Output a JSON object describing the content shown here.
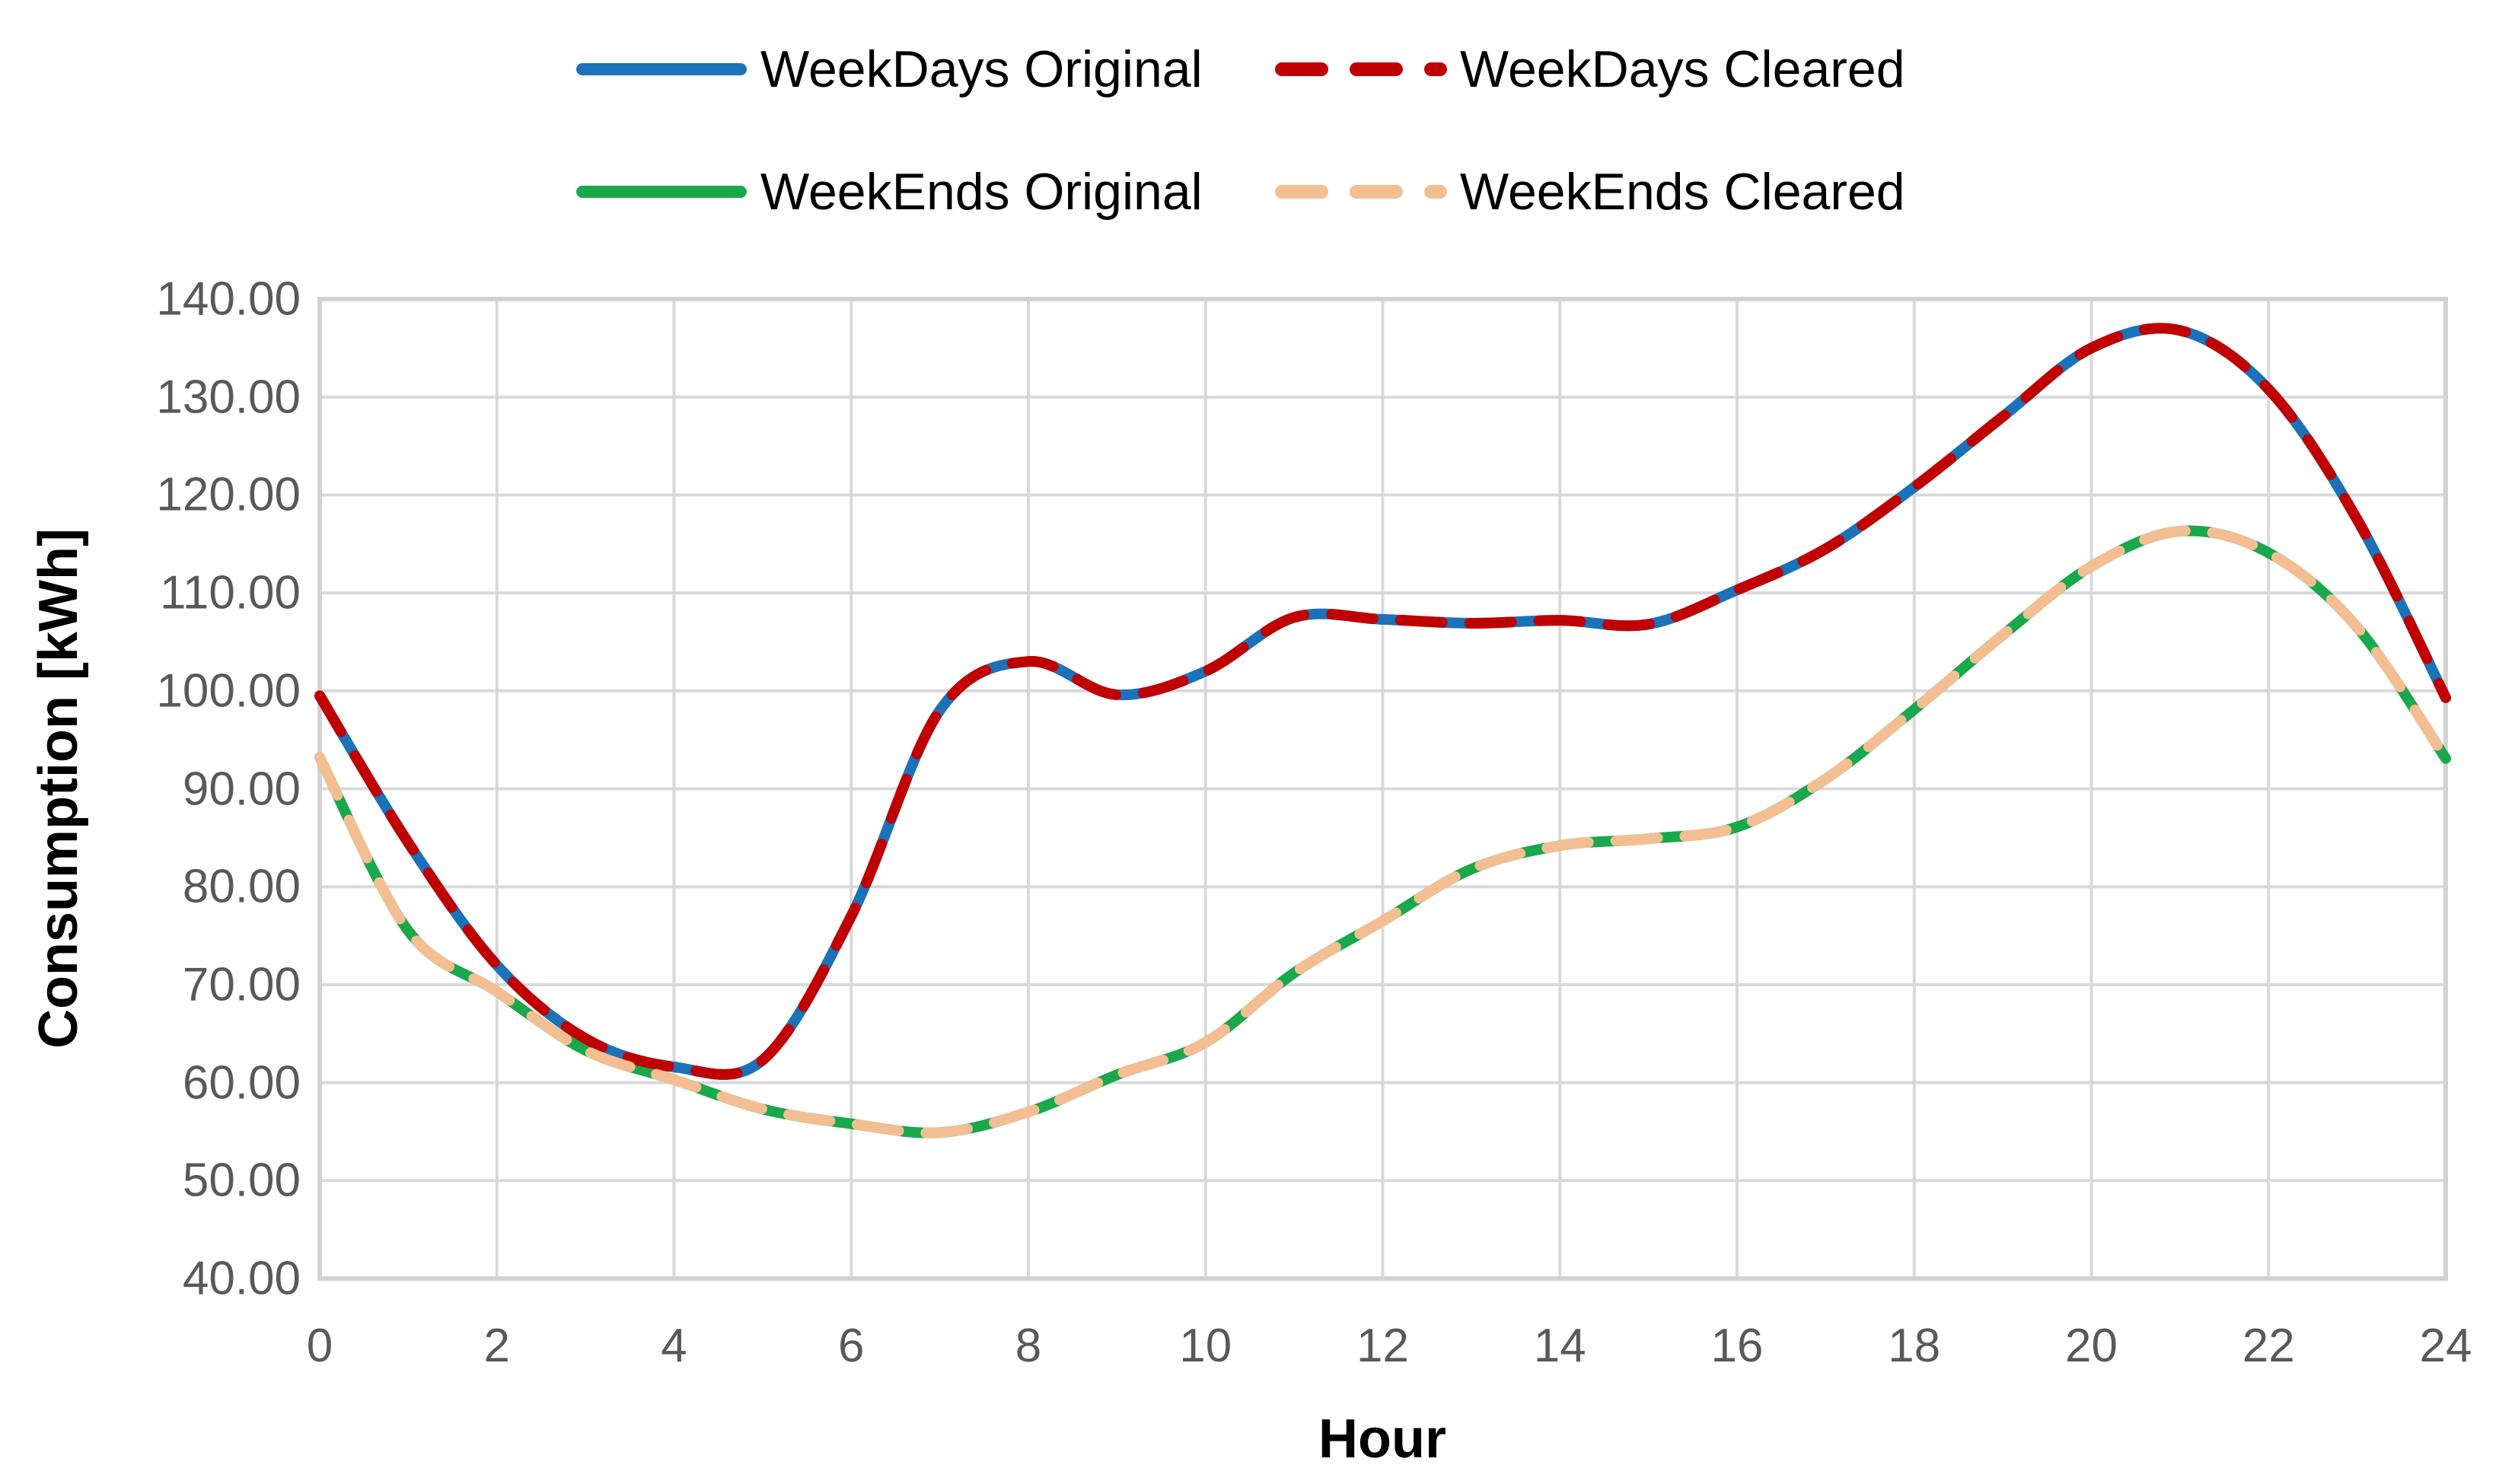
{
  "chart_data": {
    "type": "line",
    "title": "",
    "xlabel": "Hour",
    "ylabel": "Consumption [kWh]",
    "xlim": [
      0,
      24
    ],
    "ylim": [
      40,
      140
    ],
    "x_tick_step": 2,
    "y_tick_step": 10,
    "grid": true,
    "legend_position": "top",
    "x_ticks": [
      "0",
      "2",
      "4",
      "6",
      "8",
      "10",
      "12",
      "14",
      "16",
      "18",
      "20",
      "22",
      "24"
    ],
    "y_ticks": [
      "140.00",
      "130.00",
      "120.00",
      "110.00",
      "100.00",
      "90.00",
      "80.00",
      "70.00",
      "60.00",
      "50.00",
      "40.00"
    ],
    "x": [
      0,
      1,
      2,
      3,
      4,
      5,
      6,
      7,
      8,
      9,
      10,
      11,
      12,
      13,
      14,
      15,
      16,
      17,
      18,
      19,
      20,
      21,
      22,
      23,
      24
    ],
    "series": [
      {
        "name": "WeekDays Original",
        "color": "#1B72B9",
        "style": "solid",
        "values": [
          99.5,
          84.5,
          72.0,
          64.5,
          61.6,
          62.3,
          77.0,
          98.0,
          103.0,
          99.6,
          102.0,
          107.5,
          107.3,
          106.9,
          107.2,
          106.8,
          110.3,
          114.5,
          120.8,
          128.0,
          135.0,
          136.8,
          130.8,
          117.5,
          99.3
        ]
      },
      {
        "name": "WeekDays Cleared",
        "color": "#C00000",
        "style": "dashed",
        "values": [
          99.5,
          84.5,
          72.0,
          64.5,
          61.6,
          62.3,
          77.0,
          98.0,
          103.0,
          99.6,
          102.0,
          107.5,
          107.3,
          106.9,
          107.2,
          106.8,
          110.3,
          114.5,
          120.8,
          128.0,
          135.0,
          136.8,
          130.8,
          117.5,
          99.3
        ]
      },
      {
        "name": "WeekEnds Original",
        "color": "#19A84C",
        "style": "solid",
        "values": [
          93.2,
          75.5,
          69.3,
          63.3,
          60.3,
          57.3,
          55.8,
          54.9,
          57.0,
          60.8,
          64.1,
          71.2,
          76.5,
          81.8,
          84.2,
          84.9,
          86.1,
          91.0,
          98.1,
          105.7,
          112.7,
          116.3,
          114.1,
          106.5,
          93.1
        ]
      },
      {
        "name": "WeekEnds Cleared",
        "color": "#F4BE93",
        "style": "dashed",
        "values": [
          93.2,
          75.5,
          69.3,
          63.3,
          60.3,
          57.3,
          55.8,
          54.9,
          57.0,
          60.8,
          64.1,
          71.2,
          76.5,
          81.8,
          84.2,
          84.9,
          86.1,
          91.0,
          98.1,
          105.7,
          112.7,
          116.3,
          114.1,
          106.5,
          93.1
        ]
      }
    ],
    "style": {
      "gridline_color": "#D9D9D9",
      "plot_border_color": "#D2D2D2",
      "tick_label_color": "#595959",
      "line_width": 14,
      "background": "#FFFFFF"
    }
  }
}
